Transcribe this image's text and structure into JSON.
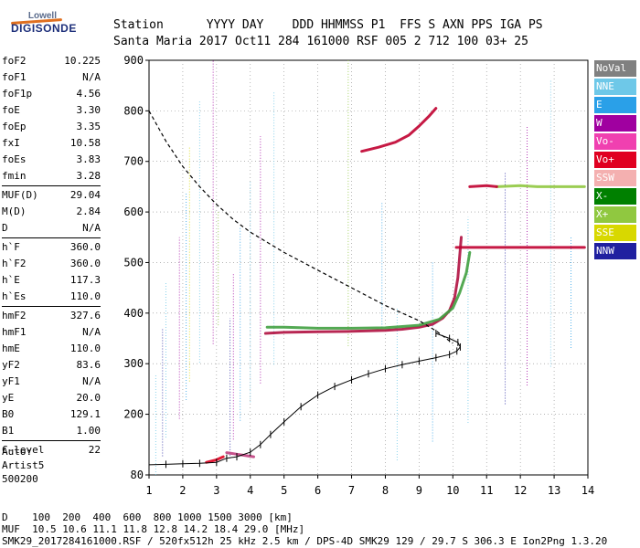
{
  "logo": {
    "top": "Lowell",
    "bottom": "DIGISONDE"
  },
  "header": {
    "line1": "Station      YYYY DAY    DDD HHMMSS P1  FFS S AXN PPS IGA PS",
    "line2": "Santa Maria 2017 Oct11 284 161000 RSF 005 2 712 100 03+ 25"
  },
  "params": [
    [
      {
        "label": "foF2",
        "value": "10.225"
      },
      {
        "label": "foF1",
        "value": "N/A"
      },
      {
        "label": "foF1p",
        "value": "4.56"
      },
      {
        "label": "foE",
        "value": "3.30"
      },
      {
        "label": "foEp",
        "value": "3.35"
      },
      {
        "label": "fxI",
        "value": "10.58"
      },
      {
        "label": "foEs",
        "value": "3.83"
      },
      {
        "label": "fmin",
        "value": "3.28"
      }
    ],
    [
      {
        "label": "MUF(D)",
        "value": "29.04"
      },
      {
        "label": "M(D)",
        "value": "2.84"
      },
      {
        "label": "D",
        "value": "N/A"
      }
    ],
    [
      {
        "label": "h`F",
        "value": "360.0"
      },
      {
        "label": "h`F2",
        "value": "360.0"
      },
      {
        "label": "h`E",
        "value": "117.3"
      },
      {
        "label": "h`Es",
        "value": "110.0"
      }
    ],
    [
      {
        "label": "hmF2",
        "value": "327.6"
      },
      {
        "label": "hmF1",
        "value": "N/A"
      },
      {
        "label": "hmE",
        "value": "110.0"
      },
      {
        "label": "yF2",
        "value": "83.6"
      },
      {
        "label": "yF1",
        "value": "N/A"
      },
      {
        "label": "yE",
        "value": "20.0"
      },
      {
        "label": "B0",
        "value": "129.1"
      },
      {
        "label": "B1",
        "value": "1.00"
      }
    ],
    [
      {
        "label": "C-level",
        "value": "22"
      }
    ]
  ],
  "auto": {
    "line1": "Auto:",
    "line2": "Artist5",
    "line3": "500200"
  },
  "legend": [
    {
      "label": "NoVal",
      "color": "#808080"
    },
    {
      "label": "NNE",
      "color": "#6ec8e8"
    },
    {
      "label": "E",
      "color": "#2aa0e8"
    },
    {
      "label": "W",
      "color": "#a000a0"
    },
    {
      "label": "Vo-",
      "color": "#f040b0"
    },
    {
      "label": "Vo+",
      "color": "#e00020"
    },
    {
      "label": "SSW",
      "color": "#f4b0b0"
    },
    {
      "label": "X-",
      "color": "#008000"
    },
    {
      "label": "X+",
      "color": "#90c840"
    },
    {
      "label": "SSE",
      "color": "#d8d800"
    },
    {
      "label": "NNW",
      "color": "#2020a0"
    }
  ],
  "bottom": {
    "line1": "D    100  200  400  600  800 1000 1500 3000 [km]",
    "line2": "MUF  10.5 10.6 11.1 11.8 12.8 14.2 18.4 29.0 [MHz]",
    "line3": "SMK29_2017284161000.RSF / 520fx512h 25 kHz 2.5 km / DPS-4D SMK29 129 / 29.7 S 306.3 E Ion2Png 1.3.20"
  },
  "chart_data": {
    "type": "scatter",
    "x_ticks": [
      1,
      2,
      3,
      4,
      5,
      6,
      7,
      8,
      9,
      10,
      11,
      12,
      13,
      14
    ],
    "y_ticks": [
      80,
      200,
      300,
      400,
      500,
      600,
      700,
      800,
      900
    ],
    "xlim": [
      1,
      14
    ],
    "ylim": [
      80,
      900
    ],
    "grid": true,
    "series": [
      {
        "kind": "trace",
        "color": "#b01040",
        "points": [
          [
            4.45,
            360
          ],
          [
            5,
            362
          ],
          [
            6,
            363
          ],
          [
            7,
            364
          ],
          [
            8,
            366
          ],
          [
            8.5,
            368
          ],
          [
            9,
            372
          ],
          [
            9.4,
            378
          ],
          [
            9.7,
            390
          ],
          [
            9.9,
            405
          ],
          [
            10.05,
            430
          ],
          [
            10.15,
            470
          ],
          [
            10.25,
            550
          ]
        ]
      },
      {
        "kind": "trace",
        "color": "#40a040",
        "points": [
          [
            4.5,
            372
          ],
          [
            5,
            372
          ],
          [
            6,
            370
          ],
          [
            7,
            370
          ],
          [
            8,
            371
          ],
          [
            9,
            376
          ],
          [
            9.6,
            388
          ],
          [
            10,
            410
          ],
          [
            10.2,
            440
          ],
          [
            10.4,
            480
          ],
          [
            10.5,
            520
          ]
        ]
      },
      {
        "kind": "trace",
        "color": "#c00030",
        "points": [
          [
            7.3,
            720
          ],
          [
            7.8,
            728
          ],
          [
            8.3,
            738
          ],
          [
            8.7,
            752
          ],
          [
            9,
            770
          ],
          [
            9.3,
            790
          ],
          [
            9.5,
            805
          ]
        ]
      },
      {
        "kind": "trace",
        "color": "#c04080",
        "points": [
          [
            3.3,
            124
          ],
          [
            3.6,
            121
          ],
          [
            3.9,
            118
          ],
          [
            4.1,
            116
          ]
        ]
      },
      {
        "kind": "trace",
        "color": "#e00020",
        "points": [
          [
            2.7,
            105
          ],
          [
            3.0,
            110
          ],
          [
            3.2,
            116
          ]
        ]
      },
      {
        "kind": "trace",
        "color": "#c00030",
        "points": [
          [
            10.1,
            530
          ],
          [
            11,
            530
          ],
          [
            12,
            530
          ],
          [
            13,
            530
          ],
          [
            13.9,
            530
          ]
        ]
      },
      {
        "kind": "trace",
        "color": "#90c840",
        "points": [
          [
            11.3,
            650
          ],
          [
            12,
            652
          ],
          [
            12.5,
            650
          ],
          [
            13,
            650
          ],
          [
            13.9,
            650
          ]
        ]
      },
      {
        "kind": "trace",
        "color": "#c00030",
        "points": [
          [
            10.5,
            650
          ],
          [
            11,
            652
          ],
          [
            11.3,
            650
          ]
        ]
      },
      {
        "kind": "profile",
        "color": "#000000",
        "points": [
          [
            1,
            100
          ],
          [
            1.5,
            101
          ],
          [
            2,
            102
          ],
          [
            2.5,
            103
          ],
          [
            3,
            105
          ],
          [
            3.3,
            113
          ],
          [
            3.6,
            116
          ],
          [
            4,
            125
          ],
          [
            4.3,
            140
          ],
          [
            4.6,
            160
          ],
          [
            5,
            185
          ],
          [
            5.5,
            215
          ],
          [
            6,
            238
          ],
          [
            6.5,
            255
          ],
          [
            7,
            268
          ],
          [
            7.5,
            280
          ],
          [
            8,
            290
          ],
          [
            8.5,
            298
          ],
          [
            9,
            305
          ],
          [
            9.5,
            312
          ],
          [
            9.9,
            318
          ],
          [
            10.12,
            325
          ],
          [
            10.22,
            333
          ],
          [
            10.15,
            342
          ],
          [
            9.9,
            350
          ],
          [
            9.5,
            360
          ]
        ]
      },
      {
        "kind": "muf",
        "color": "#000000",
        "points": [
          [
            1,
            800
          ],
          [
            1.5,
            740
          ],
          [
            2,
            690
          ],
          [
            2.5,
            650
          ],
          [
            3,
            615
          ],
          [
            3.5,
            585
          ],
          [
            4,
            560
          ],
          [
            5,
            520
          ],
          [
            6,
            485
          ],
          [
            7,
            450
          ],
          [
            8,
            415
          ],
          [
            8.5,
            400
          ],
          [
            9,
            385
          ],
          [
            9.5,
            365
          ],
          [
            10,
            340
          ]
        ]
      }
    ]
  }
}
